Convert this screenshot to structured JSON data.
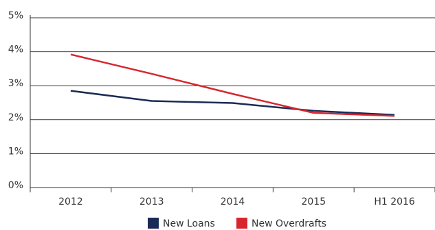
{
  "chart_data": {
    "type": "line",
    "categories": [
      "2012",
      "2013",
      "2014",
      "2015",
      "H1 2016"
    ],
    "series": [
      {
        "name": "New Loans",
        "values": [
          2.85,
          2.55,
          2.49,
          2.26,
          2.14
        ],
        "color": "#1b2a55"
      },
      {
        "name": "New Overdrafts",
        "values": [
          3.92,
          3.35,
          2.76,
          2.2,
          2.11
        ],
        "color": "#d7262e"
      }
    ],
    "ylim": [
      0,
      5
    ],
    "yticks": [
      0,
      1,
      2,
      3,
      4,
      5
    ],
    "ytick_labels": [
      "0%",
      "1%",
      "2%",
      "3%",
      "4%",
      "5%"
    ],
    "grid": true,
    "legend_position": "bottom-center",
    "gridline_color": "#333333",
    "axis_color": "#333333"
  }
}
